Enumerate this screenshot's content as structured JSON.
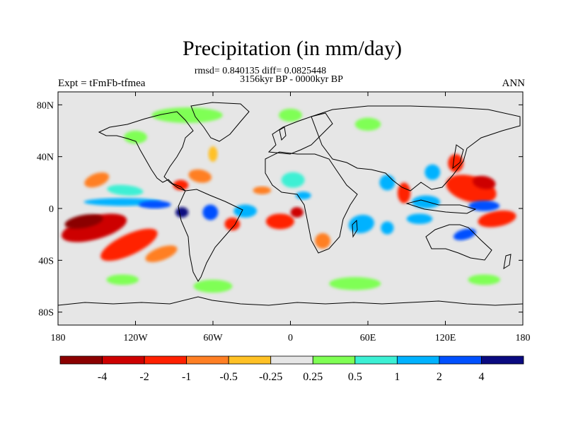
{
  "chart_data": {
    "type": "heatmap",
    "title": "Precipitation (in mm/day)",
    "stats_line": "rmsd= 0.840135 diff= 0.0825448",
    "period": "3156kyr BP - 0000kyr BP",
    "left_label": "Expt = tFmFb-tfmea",
    "right_label": "ANN",
    "xlim": [
      -180,
      180
    ],
    "ylim": [
      -90,
      90
    ],
    "x_ticks": [
      {
        "value": -180,
        "label": "180"
      },
      {
        "value": -120,
        "label": "120W"
      },
      {
        "value": -60,
        "label": "60W"
      },
      {
        "value": 0,
        "label": "0"
      },
      {
        "value": 60,
        "label": "60E"
      },
      {
        "value": 120,
        "label": "120E"
      },
      {
        "value": 180,
        "label": "180"
      }
    ],
    "y_ticks": [
      {
        "value": 80,
        "label": "80N"
      },
      {
        "value": 40,
        "label": "40N"
      },
      {
        "value": 0,
        "label": "0"
      },
      {
        "value": -40,
        "label": "40S"
      },
      {
        "value": -80,
        "label": "80S"
      }
    ],
    "colorbar": {
      "colors": [
        "#8b0000",
        "#cd0000",
        "#ff2000",
        "#ff7f24",
        "#ffc125",
        "#e6e6e6",
        "#7fff54",
        "#3cf0d4",
        "#00b2ff",
        "#0050ff",
        "#0a0a80"
      ],
      "labels": [
        "-4",
        "-2",
        "-1",
        "-0.5",
        "-0.25",
        "0.25",
        "0.5",
        "1",
        "2",
        "4"
      ]
    },
    "anomaly_regions": [
      {
        "lon": -152,
        "lat": -15,
        "w": 52,
        "h": 9,
        "level": 1,
        "rot": -15
      },
      {
        "lon": -160,
        "lat": -10,
        "w": 30,
        "h": 5,
        "level": 0,
        "rot": -10
      },
      {
        "lon": -125,
        "lat": -28,
        "w": 48,
        "h": 8,
        "level": 2,
        "rot": -25
      },
      {
        "lon": -100,
        "lat": -35,
        "w": 26,
        "h": 5,
        "level": 3,
        "rot": -20
      },
      {
        "lon": -130,
        "lat": 5,
        "w": 60,
        "h": 3,
        "level": 8,
        "rot": 0
      },
      {
        "lon": -105,
        "lat": 3,
        "w": 25,
        "h": 3,
        "level": 9,
        "rot": 0
      },
      {
        "lon": -84,
        "lat": -3,
        "w": 10,
        "h": 4,
        "level": 10,
        "rot": 0
      },
      {
        "lon": -128,
        "lat": 14,
        "w": 28,
        "h": 4,
        "level": 7,
        "rot": 5
      },
      {
        "lon": -150,
        "lat": 22,
        "w": 20,
        "h": 5,
        "level": 3,
        "rot": -20
      },
      {
        "lon": -70,
        "lat": 25,
        "w": 18,
        "h": 5,
        "level": 3,
        "rot": 10
      },
      {
        "lon": -85,
        "lat": 18,
        "w": 12,
        "h": 4,
        "level": 2,
        "rot": 0
      },
      {
        "lon": -60,
        "lat": 42,
        "w": 7,
        "h": 6,
        "level": 4,
        "rot": 0
      },
      {
        "lon": -35,
        "lat": -2,
        "w": 18,
        "h": 5,
        "level": 8,
        "rot": 0
      },
      {
        "lon": -62,
        "lat": -3,
        "w": 12,
        "h": 6,
        "level": 9,
        "rot": 0
      },
      {
        "lon": -45,
        "lat": -12,
        "w": 12,
        "h": 5,
        "level": 2,
        "rot": 0
      },
      {
        "lon": -8,
        "lat": -10,
        "w": 22,
        "h": 6,
        "level": 2,
        "rot": 0
      },
      {
        "lon": 5,
        "lat": -3,
        "w": 10,
        "h": 4,
        "level": 1,
        "rot": 0
      },
      {
        "lon": -22,
        "lat": 14,
        "w": 14,
        "h": 3,
        "level": 3,
        "rot": 0
      },
      {
        "lon": 10,
        "lat": 10,
        "w": 12,
        "h": 3,
        "level": 8,
        "rot": 0
      },
      {
        "lon": 25,
        "lat": -25,
        "w": 12,
        "h": 6,
        "level": 3,
        "rot": 0
      },
      {
        "lon": 2,
        "lat": 22,
        "w": 18,
        "h": 6,
        "level": 7,
        "rot": 0
      },
      {
        "lon": 55,
        "lat": -12,
        "w": 20,
        "h": 7,
        "level": 8,
        "rot": -10
      },
      {
        "lon": 75,
        "lat": 20,
        "w": 12,
        "h": 6,
        "level": 8,
        "rot": 0
      },
      {
        "lon": 88,
        "lat": 12,
        "w": 10,
        "h": 8,
        "level": 2,
        "rot": 0
      },
      {
        "lon": 75,
        "lat": -15,
        "w": 10,
        "h": 5,
        "level": 8,
        "rot": 0
      },
      {
        "lon": 140,
        "lat": 15,
        "w": 40,
        "h": 10,
        "level": 2,
        "rot": 15
      },
      {
        "lon": 150,
        "lat": 20,
        "w": 18,
        "h": 5,
        "level": 1,
        "rot": 10
      },
      {
        "lon": 128,
        "lat": 35,
        "w": 12,
        "h": 7,
        "level": 2,
        "rot": 0
      },
      {
        "lon": 160,
        "lat": -8,
        "w": 30,
        "h": 6,
        "level": 2,
        "rot": -10
      },
      {
        "lon": 150,
        "lat": 2,
        "w": 24,
        "h": 4,
        "level": 9,
        "rot": 0
      },
      {
        "lon": 105,
        "lat": 5,
        "w": 22,
        "h": 5,
        "level": 8,
        "rot": 0
      },
      {
        "lon": 100,
        "lat": -8,
        "w": 20,
        "h": 4,
        "level": 8,
        "rot": 0
      },
      {
        "lon": 110,
        "lat": 28,
        "w": 12,
        "h": 6,
        "level": 8,
        "rot": 0
      },
      {
        "lon": 135,
        "lat": -20,
        "w": 18,
        "h": 4,
        "level": 9,
        "rot": -15
      },
      {
        "lon": -80,
        "lat": 72,
        "w": 55,
        "h": 6,
        "level": 6,
        "rot": 0
      },
      {
        "lon": 0,
        "lat": 72,
        "w": 18,
        "h": 5,
        "level": 6,
        "rot": 0
      },
      {
        "lon": 60,
        "lat": 65,
        "w": 20,
        "h": 5,
        "level": 6,
        "rot": 0
      },
      {
        "lon": -120,
        "lat": 55,
        "w": 18,
        "h": 5,
        "level": 6,
        "rot": 0
      },
      {
        "lon": -60,
        "lat": -60,
        "w": 30,
        "h": 5,
        "level": 6,
        "rot": 0
      },
      {
        "lon": 50,
        "lat": -58,
        "w": 40,
        "h": 5,
        "level": 6,
        "rot": 0
      },
      {
        "lon": -130,
        "lat": -55,
        "w": 25,
        "h": 4,
        "level": 6,
        "rot": 0
      },
      {
        "lon": 150,
        "lat": -55,
        "w": 25,
        "h": 4,
        "level": 6,
        "rot": 0
      }
    ]
  }
}
